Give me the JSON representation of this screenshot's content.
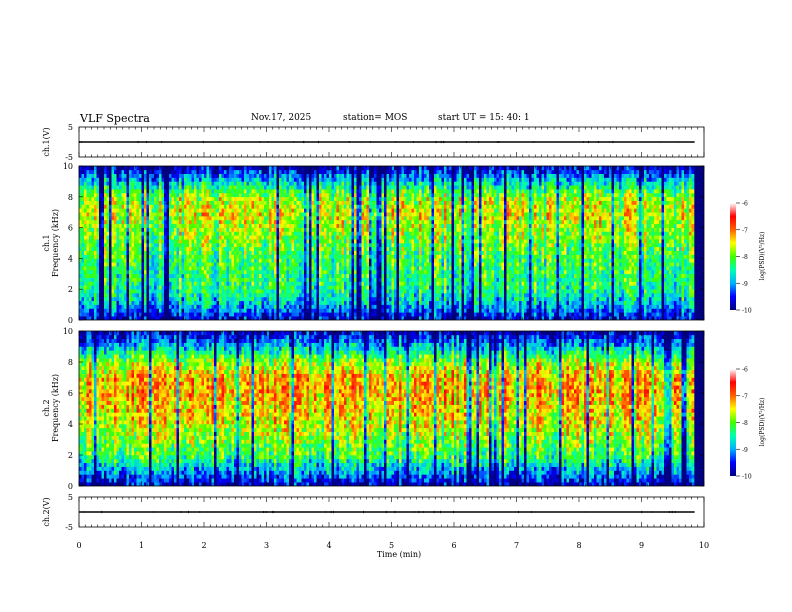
{
  "header": {
    "title": "VLF Spectra",
    "date": "Nov.17, 2025",
    "station": "station= MOS",
    "start_ut": "start  UT  =   15: 40: 1"
  },
  "chart_data": [
    {
      "type": "line",
      "panel": "waveform-1",
      "ylabel": "ch.1(V)",
      "yticks": [
        "5",
        "-5"
      ],
      "ylim": [
        -5,
        5
      ],
      "baseline_v": 0
    },
    {
      "type": "heatmap",
      "panel": "spectrogram-1",
      "ylabel_line1": "ch.1",
      "ylabel_line2": "Frequency (kHz)",
      "yticks": [
        "0",
        "2",
        "4",
        "6",
        "8",
        "10"
      ],
      "ylim": [
        0,
        10
      ],
      "xlim": [
        0,
        9.85
      ],
      "colorbar": {
        "label": "log(PSD)(V²/Hz)",
        "ticks": [
          "-6",
          "-7",
          "-8",
          "-9",
          "-10"
        ],
        "range": [
          -10,
          -6
        ],
        "colormap": [
          "#000080",
          "#0000ff",
          "#00b0ff",
          "#00ffb0",
          "#40ff00",
          "#ffff00",
          "#ff6000",
          "#ff0000",
          "#ffffff"
        ]
      },
      "intensity_profile_by_kHz": [
        [
          0.2,
          -9.6
        ],
        [
          1.0,
          -8.9
        ],
        [
          2.0,
          -8.4
        ],
        [
          3.0,
          -8.3
        ],
        [
          4.0,
          -8.2
        ],
        [
          5.0,
          -8.0
        ],
        [
          6.0,
          -7.8
        ],
        [
          7.0,
          -7.6
        ],
        [
          8.0,
          -7.8
        ],
        [
          9.0,
          -8.8
        ],
        [
          10.0,
          -9.8
        ]
      ]
    },
    {
      "type": "heatmap",
      "panel": "spectrogram-2",
      "ylabel_line1": "ch.2",
      "ylabel_line2": "Frequency (kHz)",
      "yticks": [
        "0",
        "2",
        "4",
        "6",
        "8",
        "10"
      ],
      "ylim": [
        0,
        10
      ],
      "xlim": [
        0,
        9.85
      ],
      "colorbar": {
        "label": "log(PSD)(V²/Hz)",
        "ticks": [
          "-6",
          "-7",
          "-8",
          "-9",
          "-10"
        ],
        "range": [
          -10,
          -6
        ],
        "colormap": [
          "#000080",
          "#0000ff",
          "#00b0ff",
          "#00ffb0",
          "#40ff00",
          "#ffff00",
          "#ff6000",
          "#ff0000",
          "#ffffff"
        ]
      },
      "intensity_profile_by_kHz": [
        [
          0.2,
          -9.7
        ],
        [
          1.0,
          -9.0
        ],
        [
          2.0,
          -8.2
        ],
        [
          3.0,
          -7.9
        ],
        [
          4.0,
          -7.6
        ],
        [
          5.0,
          -7.4
        ],
        [
          6.0,
          -7.2
        ],
        [
          7.0,
          -7.3
        ],
        [
          8.0,
          -7.8
        ],
        [
          9.0,
          -8.9
        ],
        [
          10.0,
          -9.8
        ]
      ]
    },
    {
      "type": "line",
      "panel": "waveform-2",
      "ylabel": "ch.2(V)",
      "yticks": [
        "5",
        "-5"
      ],
      "ylim": [
        -5,
        5
      ],
      "baseline_v": 0
    }
  ],
  "xaxis": {
    "label": "Time (min)",
    "ticks": [
      "0",
      "1",
      "2",
      "3",
      "4",
      "5",
      "6",
      "7",
      "8",
      "9",
      "10"
    ],
    "range": [
      0,
      10
    ]
  }
}
